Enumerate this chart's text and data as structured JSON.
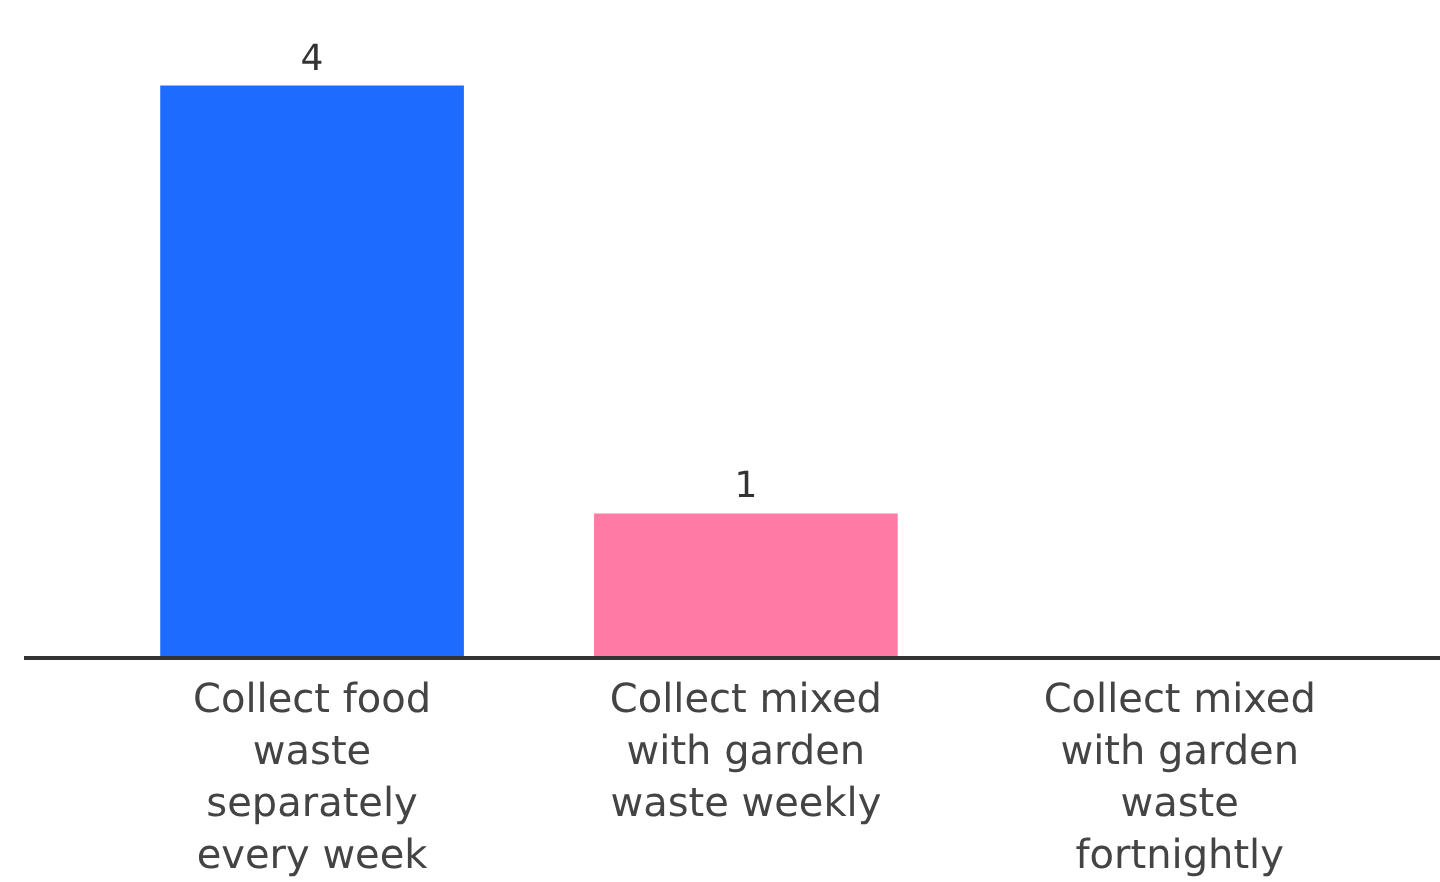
{
  "chart_data": {
    "type": "bar",
    "categories": [
      "Collect food waste separately every week",
      "Collect mixed with garden waste weekly",
      "Collect mixed with garden waste fortnightly"
    ],
    "values": [
      4,
      1,
      0
    ],
    "colors": [
      "#1e6bff",
      "#ff7ba6",
      "#ff7ba6"
    ],
    "value_labels": [
      "4",
      "1",
      null
    ]
  }
}
